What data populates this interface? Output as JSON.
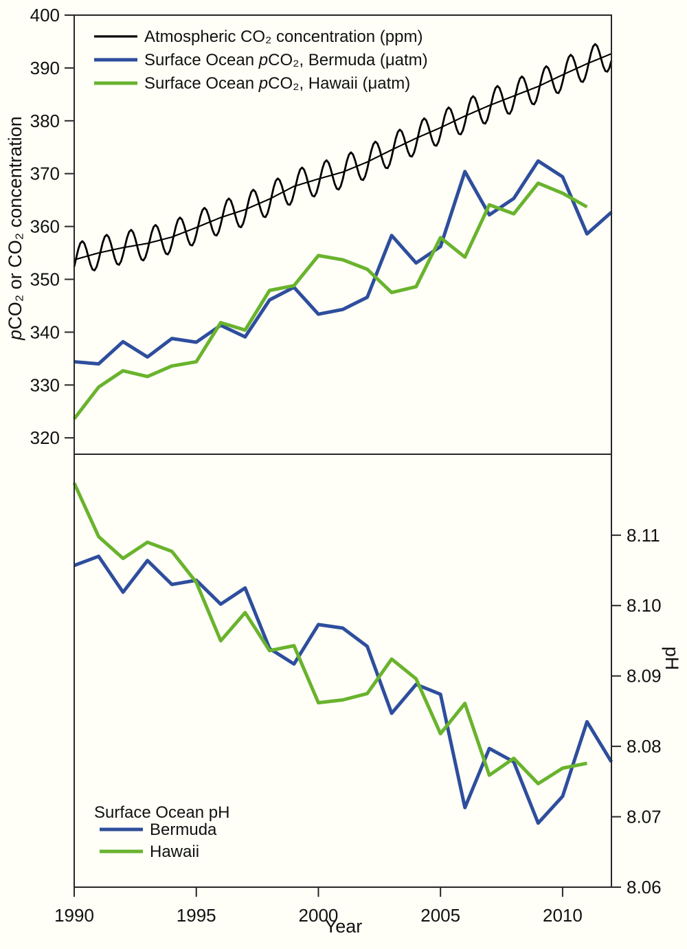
{
  "figure": {
    "description": "Two-panel time series of atmospheric and surface-ocean carbon chemistry",
    "xlabel": "Year"
  },
  "colors": {
    "atmosphere": "#000000",
    "bermuda": "#2e4e9d",
    "hawaii": "#69b32d",
    "axis": "#262626",
    "background": "#fffef7"
  },
  "chart_data": {
    "type": "line",
    "xlabel": "Year",
    "xlim": [
      1990,
      2012
    ],
    "xticks": [
      1990,
      1995,
      2000,
      2005,
      2010
    ],
    "panels": [
      {
        "id": "pco2",
        "ylabel": "*p*CO₂ or CO₂ concentration",
        "yaxis_side": "left",
        "ylim": [
          316.9,
          400
        ],
        "yticks": [
          "320",
          "330",
          "340",
          "350",
          "360",
          "370",
          "380",
          "390",
          "400"
        ],
        "legend": [
          {
            "label": "Atmospheric CO₂ concentration (ppm)",
            "color_key": "atmosphere"
          },
          {
            "label": "Surface Ocean *p*CO₂, Bermuda (μatm)",
            "color_key": "bermuda"
          },
          {
            "label": "Surface Ocean *p*CO₂, Hawaii (μatm)",
            "color_key": "hawaii"
          }
        ],
        "series": [
          {
            "name": "Atmospheric CO₂ concentration (ppm)",
            "color_key": "atmosphere",
            "kind": "monthly_with_seasonal",
            "x_start": 1990,
            "x_end": 2012,
            "trend": [
              353.7,
              355.0,
              356.0,
              356.8,
              358.0,
              359.8,
              361.7,
              363.2,
              365.2,
              367.6,
              369.0,
              370.3,
              372.2,
              374.5,
              376.7,
              378.7,
              380.9,
              382.9,
              384.7,
              386.5,
              388.7,
              390.8,
              392.7
            ],
            "seasonal_amplitude": 3.1,
            "seasonal_peak_fraction": 0.32,
            "show_trend_line": true
          },
          {
            "name": "Surface Ocean pCO₂, Bermuda (μatm)",
            "color_key": "bermuda",
            "kind": "annual",
            "x_start": 1990,
            "values": [
              334.4,
              334.0,
              338.2,
              335.3,
              338.8,
              338.1,
              341.3,
              339.1,
              346.1,
              348.5,
              343.4,
              344.3,
              346.6,
              358.3,
              353.1,
              356.2,
              370.4,
              362.2,
              365.3,
              372.4,
              369.4,
              358.6,
              362.7
            ]
          },
          {
            "name": "Surface Ocean pCO₂, Hawaii (μatm)",
            "color_key": "hawaii",
            "kind": "annual",
            "x_start": 1990,
            "values": [
              323.6,
              329.6,
              332.7,
              331.6,
              333.6,
              334.4,
              341.8,
              340.4,
              347.9,
              348.8,
              354.5,
              353.7,
              351.9,
              347.5,
              348.6,
              357.9,
              354.2,
              364.1,
              362.4,
              368.2,
              366.3,
              363.7
            ]
          }
        ]
      },
      {
        "id": "ph",
        "ylabel": "pH",
        "yaxis_side": "right",
        "ylim": [
          8.06,
          8.1215
        ],
        "yticks": [
          "8.06",
          "8.07",
          "8.08",
          "8.09",
          "8.10",
          "8.11"
        ],
        "legend_title": "Surface Ocean pH",
        "legend": [
          {
            "label": "Bermuda",
            "color_key": "bermuda"
          },
          {
            "label": "Hawaii",
            "color_key": "hawaii"
          }
        ],
        "series": [
          {
            "name": "Surface Ocean pH, Bermuda",
            "color_key": "bermuda",
            "kind": "annual",
            "x_start": 1990,
            "values": [
              8.1057,
              8.107,
              8.1019,
              8.1064,
              8.103,
              8.1036,
              8.1002,
              8.1025,
              8.0939,
              8.0917,
              8.0973,
              8.0968,
              8.0942,
              8.0847,
              8.0888,
              8.0874,
              8.0713,
              8.0797,
              8.0778,
              8.0691,
              8.0729,
              8.0835,
              8.0778
            ]
          },
          {
            "name": "Surface Ocean pH, Hawaii",
            "color_key": "hawaii",
            "kind": "annual",
            "x_start": 1990,
            "values": [
              8.1174,
              8.1098,
              8.1067,
              8.109,
              8.1077,
              8.1033,
              8.095,
              8.099,
              8.0936,
              8.0943,
              8.0862,
              8.0866,
              8.0875,
              8.0924,
              8.0896,
              8.0818,
              8.0861,
              8.0759,
              8.0783,
              8.0747,
              8.0769,
              8.0776
            ]
          }
        ]
      }
    ]
  }
}
